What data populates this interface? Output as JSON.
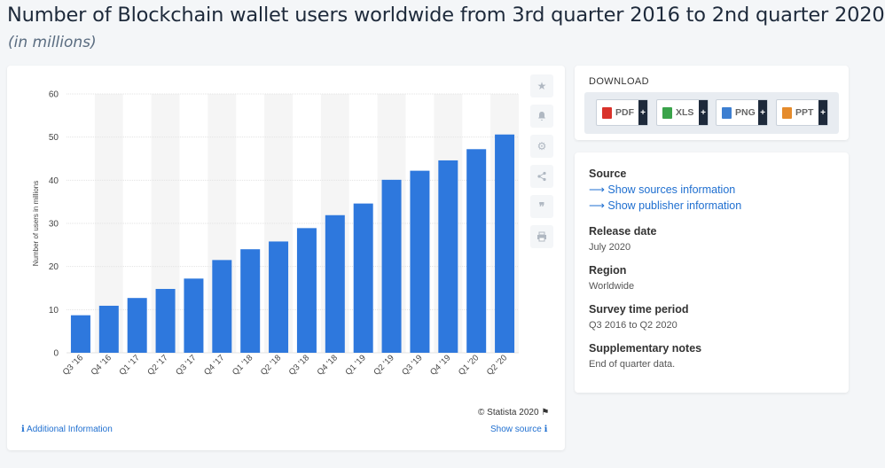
{
  "page": {
    "title": "Number of Blockchain wallet users worldwide from 3rd quarter 2016 to 2nd quarter 2020",
    "subtitle": "(in millions)"
  },
  "chart_data": {
    "type": "bar",
    "categories": [
      "Q3 '16",
      "Q4 '16",
      "Q1 '17",
      "Q2 '17",
      "Q3 '17",
      "Q4 '17",
      "Q1 '18",
      "Q2 '18",
      "Q3 '18",
      "Q4 '18",
      "Q1 '19",
      "Q2 '19",
      "Q3 '19",
      "Q4 '19",
      "Q1 '20",
      "Q2 '20"
    ],
    "values": [
      8.7,
      10.9,
      12.7,
      14.8,
      17.2,
      21.5,
      24.0,
      25.8,
      28.9,
      31.9,
      34.6,
      40.1,
      42.2,
      44.6,
      47.2,
      50.6
    ],
    "title": "Number of Blockchain wallet users worldwide from 3rd quarter 2016 to 2nd quarter 2020",
    "xlabel": "",
    "ylabel": "Number of users in millions",
    "ylim": [
      0,
      60
    ],
    "yticks": [
      0,
      10,
      20,
      30,
      40,
      50,
      60
    ],
    "bar_color": "#2e78dd",
    "stripe_color": "#f5f5f5",
    "grid": true
  },
  "chart_footer": {
    "copyright": "© Statista 2020",
    "additional_info": "Additional Information",
    "show_source": "Show source"
  },
  "side_icons": [
    "star-icon",
    "bell-icon",
    "gear-icon",
    "share-icon",
    "quote-icon",
    "print-icon"
  ],
  "download": {
    "title": "DOWNLOAD",
    "buttons": [
      {
        "label": "PDF",
        "color": "#d9322b"
      },
      {
        "label": "XLS",
        "color": "#3aa34a"
      },
      {
        "label": "PNG",
        "color": "#3d7fd1"
      },
      {
        "label": "PPT",
        "color": "#e58b2c"
      }
    ],
    "plus": "+"
  },
  "info": {
    "source_heading": "Source",
    "show_sources": "Show sources information",
    "show_publisher": "Show publisher information",
    "release_heading": "Release date",
    "release_value": "July 2020",
    "region_heading": "Region",
    "region_value": "Worldwide",
    "period_heading": "Survey time period",
    "period_value": "Q3 2016 to Q2 2020",
    "notes_heading": "Supplementary notes",
    "notes_value": "End of quarter data."
  }
}
